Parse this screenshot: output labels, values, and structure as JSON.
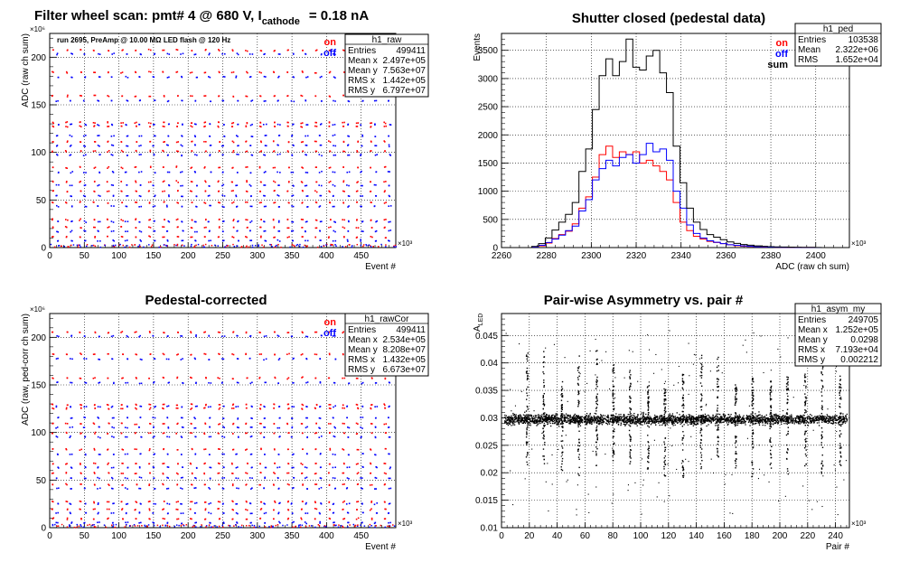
{
  "chart_data": [
    {
      "id": "raw",
      "type": "scatter",
      "title": "Filter wheel scan: pmt#   4 @   680 V, I",
      "title_sub": "cathode",
      "title_tail": "= 0.18 nA",
      "annotation": "run 2695, PreAmp @ 10.00 MΩ LED flash @  120 Hz",
      "xlabel": "Event #",
      "ylabel": "ADC (raw ch sum)",
      "x_multiplier": "×10³",
      "y_multiplier": "×10⁶",
      "xlim": [
        0,
        500
      ],
      "ylim": [
        0,
        225
      ],
      "x_ticks": [
        0,
        50,
        100,
        150,
        200,
        250,
        300,
        350,
        400,
        450
      ],
      "y_ticks": [
        0,
        50,
        100,
        150,
        200
      ],
      "grid": true,
      "legend": [
        "on",
        "off"
      ],
      "colors": {
        "on": "#ff0000",
        "off": "#0000ff"
      },
      "levels_on": [
        208,
        185,
        160,
        132,
        128,
        112,
        102,
        85,
        70,
        60,
        48,
        30,
        22,
        12
      ],
      "levels_off": [
        204,
        180,
        155,
        130,
        118,
        108,
        98,
        80,
        66,
        55,
        44,
        28,
        18,
        8
      ],
      "stats": {
        "name": "h1_raw",
        "rows": [
          [
            "Entries",
            "499411"
          ],
          [
            "Mean x",
            "2.497e+05"
          ],
          [
            "Mean y",
            "7.563e+07"
          ],
          [
            "RMS x",
            "1.442e+05"
          ],
          [
            "RMS y",
            "6.797e+07"
          ]
        ]
      }
    },
    {
      "id": "ped",
      "type": "line",
      "title": "Shutter closed (pedestal data)",
      "xlabel": "ADC (raw ch sum)",
      "ylabel": "Events",
      "x_multiplier": "×10³",
      "xlim": [
        2260,
        2415
      ],
      "ylim": [
        0,
        3800
      ],
      "x_ticks": [
        2260,
        2280,
        2300,
        2320,
        2340,
        2360,
        2380,
        2400
      ],
      "y_ticks": [
        0,
        500,
        1000,
        1500,
        2000,
        2500,
        3000,
        3500
      ],
      "grid": true,
      "legend": [
        "on",
        "off",
        "sum"
      ],
      "colors": {
        "on": "#ff0000",
        "off": "#0000ff",
        "sum": "#000000"
      },
      "bin_width": 3,
      "series": [
        {
          "name": "on",
          "x": [
            2275,
            2278,
            2281,
            2284,
            2287,
            2290,
            2293,
            2296,
            2299,
            2302,
            2305,
            2308,
            2311,
            2314,
            2317,
            2320,
            2323,
            2326,
            2329,
            2332,
            2335,
            2338,
            2341,
            2344,
            2347,
            2350,
            2353,
            2356,
            2359,
            2362,
            2365,
            2368,
            2371,
            2374,
            2377,
            2380,
            2383,
            2386,
            2389,
            2392,
            2395,
            2398,
            2401
          ],
          "values": [
            10,
            30,
            80,
            160,
            230,
            290,
            420,
            700,
            900,
            1250,
            1650,
            1800,
            1600,
            1700,
            1650,
            1700,
            1500,
            1550,
            1450,
            1350,
            1200,
            800,
            450,
            300,
            200,
            150,
            110,
            90,
            70,
            50,
            35,
            25,
            20,
            15,
            10,
            8,
            6,
            5,
            4,
            3,
            2,
            2,
            1
          ]
        },
        {
          "name": "off",
          "x": [
            2275,
            2278,
            2281,
            2284,
            2287,
            2290,
            2293,
            2296,
            2299,
            2302,
            2305,
            2308,
            2311,
            2314,
            2317,
            2320,
            2323,
            2326,
            2329,
            2332,
            2335,
            2338,
            2341,
            2344,
            2347,
            2350,
            2353,
            2356,
            2359,
            2362,
            2365,
            2368,
            2371,
            2374,
            2377,
            2380,
            2383,
            2386,
            2389,
            2392,
            2395,
            2398,
            2401
          ],
          "values": [
            10,
            40,
            90,
            150,
            220,
            300,
            380,
            650,
            850,
            1200,
            1400,
            1550,
            1450,
            1600,
            1650,
            1500,
            1650,
            1850,
            1700,
            1750,
            1550,
            1000,
            700,
            400,
            250,
            170,
            120,
            95,
            70,
            50,
            40,
            30,
            22,
            15,
            12,
            9,
            7,
            5,
            4,
            3,
            2,
            2,
            1
          ]
        },
        {
          "name": "sum",
          "x": [
            2275,
            2278,
            2281,
            2284,
            2287,
            2290,
            2293,
            2296,
            2299,
            2302,
            2305,
            2308,
            2311,
            2314,
            2317,
            2320,
            2323,
            2326,
            2329,
            2332,
            2335,
            2338,
            2341,
            2344,
            2347,
            2350,
            2353,
            2356,
            2359,
            2362,
            2365,
            2368,
            2371,
            2374,
            2377,
            2380,
            2383,
            2386,
            2389,
            2392,
            2395,
            2398,
            2401
          ],
          "values": [
            20,
            70,
            170,
            310,
            450,
            590,
            800,
            1350,
            1750,
            2450,
            3050,
            3350,
            3050,
            3300,
            3700,
            3200,
            3150,
            3400,
            3500,
            3100,
            2750,
            1800,
            1150,
            700,
            450,
            320,
            230,
            185,
            140,
            100,
            75,
            55,
            42,
            30,
            22,
            17,
            13,
            10,
            8,
            6,
            4,
            4,
            2
          ]
        }
      ],
      "stats": {
        "name": "h1_ped",
        "rows": [
          [
            "Entries",
            "103538"
          ],
          [
            "Mean",
            "2.322e+06"
          ],
          [
            "RMS",
            "1.652e+04"
          ]
        ]
      }
    },
    {
      "id": "cor",
      "type": "scatter",
      "title": "Pedestal-corrected",
      "xlabel": "Event #",
      "ylabel": "ADC (raw, ped-corr ch sum)",
      "x_multiplier": "×10³",
      "y_multiplier": "×10⁶",
      "xlim": [
        0,
        500
      ],
      "ylim": [
        0,
        225
      ],
      "x_ticks": [
        0,
        50,
        100,
        150,
        200,
        250,
        300,
        350,
        400,
        450
      ],
      "y_ticks": [
        0,
        50,
        100,
        150,
        200
      ],
      "grid": true,
      "legend": [
        "on",
        "off"
      ],
      "colors": {
        "on": "#ff0000",
        "off": "#0000ff"
      },
      "levels_on": [
        206,
        183,
        158,
        130,
        126,
        110,
        100,
        83,
        68,
        58,
        46,
        28,
        20,
        10
      ],
      "levels_off": [
        202,
        178,
        153,
        128,
        116,
        106,
        96,
        78,
        64,
        53,
        42,
        26,
        16,
        6
      ],
      "stats": {
        "name": "h1_rawCor",
        "rows": [
          [
            "Entries",
            "499411"
          ],
          [
            "Mean x",
            "2.534e+05"
          ],
          [
            "Mean y",
            "8.208e+07"
          ],
          [
            "RMS x",
            "1.432e+05"
          ],
          [
            "RMS y",
            "6.673e+07"
          ]
        ]
      }
    },
    {
      "id": "asym",
      "type": "scatter",
      "title": "Pair-wise Asymmetry vs. pair #",
      "xlabel": "Pair #",
      "ylabel": "A",
      "ylabel_sub": "LED",
      "x_multiplier": "×10³",
      "xlim": [
        0,
        250
      ],
      "ylim": [
        0.01,
        0.049
      ],
      "x_ticks": [
        0,
        20,
        40,
        60,
        80,
        100,
        120,
        140,
        160,
        180,
        200,
        220,
        240
      ],
      "y_ticks": [
        0.01,
        0.015,
        0.02,
        0.025,
        0.03,
        0.035,
        0.04,
        0.045
      ],
      "grid": true,
      "band_center": 0.0298,
      "spike_pairs": [
        18,
        30,
        43,
        55,
        68,
        80,
        92,
        105,
        117,
        130,
        143,
        155,
        168,
        180,
        193,
        205,
        218,
        230,
        243
      ],
      "stats": {
        "name": "h1_asym_my",
        "rows": [
          [
            "Entries",
            "249705"
          ],
          [
            "Mean x",
            "1.252e+05"
          ],
          [
            "Mean y",
            "0.0298"
          ],
          [
            "RMS x",
            "7.193e+04"
          ],
          [
            "RMS y",
            "0.002212"
          ]
        ]
      }
    }
  ]
}
